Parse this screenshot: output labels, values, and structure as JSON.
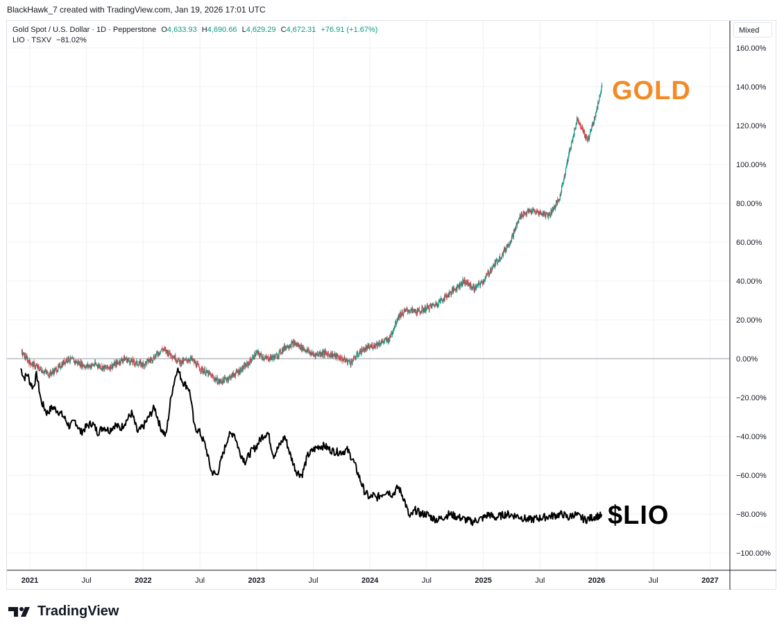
{
  "header": {
    "credit": "BlackHawk_7 created with TradingView.com, Jan 19, 2026 17:01 UTC"
  },
  "legend": {
    "main_symbol": "Gold Spot / U.S. Dollar · 1D · Pepperstone",
    "o_label": "O",
    "o_value": "4,633.93",
    "h_label": "H",
    "h_value": "4,690.66",
    "l_label": "L",
    "l_value": "4,629.29",
    "c_label": "C",
    "c_value": "4,672.31",
    "change": "+76.91 (+1.67%)",
    "compare_symbol": "LIO · TSXV",
    "compare_value": "−81.02%"
  },
  "scale_mode": "Mixed",
  "annotations": {
    "gold": "GOLD",
    "lio": "$LIO"
  },
  "branding": {
    "logo_text": "TradingView"
  },
  "colors": {
    "gold_label": "#f28a26",
    "up_candle": "#089981",
    "down_candle": "#f23645",
    "lio_line": "#000000",
    "grid": "#eef0f4"
  },
  "chart_data": {
    "type": "line",
    "y_unit": "%",
    "ylim": [
      -110,
      160
    ],
    "yticks": [
      160,
      140,
      120,
      100,
      80,
      60,
      40,
      20,
      0,
      -20,
      -40,
      -60,
      -80,
      -100
    ],
    "ytick_labels": [
      "160.00%",
      "140.00%",
      "120.00%",
      "100.00%",
      "80.00%",
      "60.00%",
      "40.00%",
      "20.00%",
      "0.00%",
      "−20.00%",
      "−40.00%",
      "−60.00%",
      "−80.00%",
      "−100.00%"
    ],
    "xlim": [
      2020.92,
      2027.05
    ],
    "xticks": [
      2021.0,
      2021.5,
      2022.0,
      2022.5,
      2023.0,
      2023.5,
      2024.0,
      2024.5,
      2025.0,
      2025.5,
      2026.0,
      2026.5,
      2027.0
    ],
    "xtick_labels": [
      "2021",
      "Jul",
      "2022",
      "Jul",
      "2023",
      "Jul",
      "2024",
      "Jul",
      "2025",
      "Jul",
      "2026",
      "Jul",
      "2027"
    ],
    "grid": true,
    "series": [
      {
        "name": "Gold Spot / U.S. Dollar",
        "style": "candles",
        "x": [
          2020.93,
          2021.0,
          2021.08,
          2021.17,
          2021.25,
          2021.33,
          2021.42,
          2021.5,
          2021.58,
          2021.67,
          2021.75,
          2021.83,
          2021.92,
          2022.0,
          2022.08,
          2022.17,
          2022.25,
          2022.33,
          2022.42,
          2022.5,
          2022.58,
          2022.67,
          2022.75,
          2022.83,
          2022.92,
          2023.0,
          2023.08,
          2023.17,
          2023.25,
          2023.33,
          2023.42,
          2023.5,
          2023.58,
          2023.67,
          2023.75,
          2023.83,
          2023.92,
          2024.0,
          2024.08,
          2024.17,
          2024.25,
          2024.33,
          2024.42,
          2024.5,
          2024.58,
          2024.67,
          2024.75,
          2024.83,
          2024.92,
          2025.0,
          2025.08,
          2025.17,
          2025.25,
          2025.33,
          2025.42,
          2025.5,
          2025.58,
          2025.67,
          2025.75,
          2025.83,
          2025.92,
          2026.0,
          2026.05
        ],
        "y": [
          3,
          -2,
          -5,
          -8,
          -5,
          0,
          -2,
          -4,
          -3,
          -5,
          -3,
          0,
          -2,
          -3,
          0,
          5,
          2,
          -2,
          0,
          -5,
          -8,
          -12,
          -10,
          -7,
          -3,
          3,
          0,
          1,
          6,
          8,
          5,
          2,
          3,
          2,
          0,
          -2,
          4,
          6,
          8,
          10,
          22,
          25,
          24,
          26,
          28,
          32,
          36,
          40,
          36,
          40,
          47,
          54,
          62,
          74,
          76,
          75,
          74,
          82,
          104,
          124,
          112,
          128,
          142
        ]
      },
      {
        "name": "LIO · TSXV",
        "style": "line",
        "x": [
          2020.92,
          2020.95,
          2020.98,
          2021.0,
          2021.03,
          2021.06,
          2021.1,
          2021.15,
          2021.2,
          2021.25,
          2021.3,
          2021.35,
          2021.4,
          2021.45,
          2021.5,
          2021.55,
          2021.6,
          2021.65,
          2021.7,
          2021.75,
          2021.8,
          2021.85,
          2021.9,
          2021.95,
          2022.0,
          2022.05,
          2022.1,
          2022.15,
          2022.2,
          2022.25,
          2022.3,
          2022.35,
          2022.4,
          2022.42,
          2022.45,
          2022.5,
          2022.55,
          2022.6,
          2022.65,
          2022.7,
          2022.75,
          2022.8,
          2022.85,
          2022.9,
          2022.95,
          2023.0,
          2023.05,
          2023.1,
          2023.15,
          2023.2,
          2023.25,
          2023.3,
          2023.35,
          2023.4,
          2023.45,
          2023.5,
          2023.55,
          2023.6,
          2023.65,
          2023.7,
          2023.75,
          2023.8,
          2023.85,
          2023.9,
          2023.95,
          2024.0,
          2024.03,
          2024.05,
          2024.1,
          2024.15,
          2024.2,
          2024.25,
          2024.3,
          2024.35,
          2024.4,
          2024.45,
          2024.5,
          2024.55,
          2024.6,
          2024.7,
          2024.8,
          2024.9,
          2025.0,
          2025.05,
          2025.1,
          2025.2,
          2025.3,
          2025.4,
          2025.5,
          2025.6,
          2025.7,
          2025.75,
          2025.8,
          2025.9,
          2026.0,
          2026.05
        ],
        "y": [
          -5,
          -10,
          -8,
          -12,
          -15,
          -8,
          -22,
          -28,
          -25,
          -27,
          -30,
          -35,
          -32,
          -38,
          -35,
          -33,
          -38,
          -35,
          -37,
          -34,
          -36,
          -32,
          -28,
          -38,
          -35,
          -30,
          -25,
          -35,
          -40,
          -18,
          -5,
          -12,
          -15,
          -20,
          -35,
          -38,
          -45,
          -58,
          -60,
          -50,
          -40,
          -38,
          -48,
          -53,
          -48,
          -45,
          -40,
          -38,
          -50,
          -45,
          -40,
          -50,
          -58,
          -60,
          -50,
          -47,
          -45,
          -45,
          -47,
          -48,
          -48,
          -47,
          -52,
          -60,
          -68,
          -72,
          -70,
          -72,
          -70,
          -68,
          -70,
          -66,
          -72,
          -82,
          -78,
          -80,
          -80,
          -82,
          -83,
          -80,
          -82,
          -84,
          -82,
          -80,
          -82,
          -80,
          -81,
          -83,
          -82,
          -81,
          -80,
          -82,
          -80,
          -83,
          -81,
          -81
        ]
      }
    ]
  }
}
